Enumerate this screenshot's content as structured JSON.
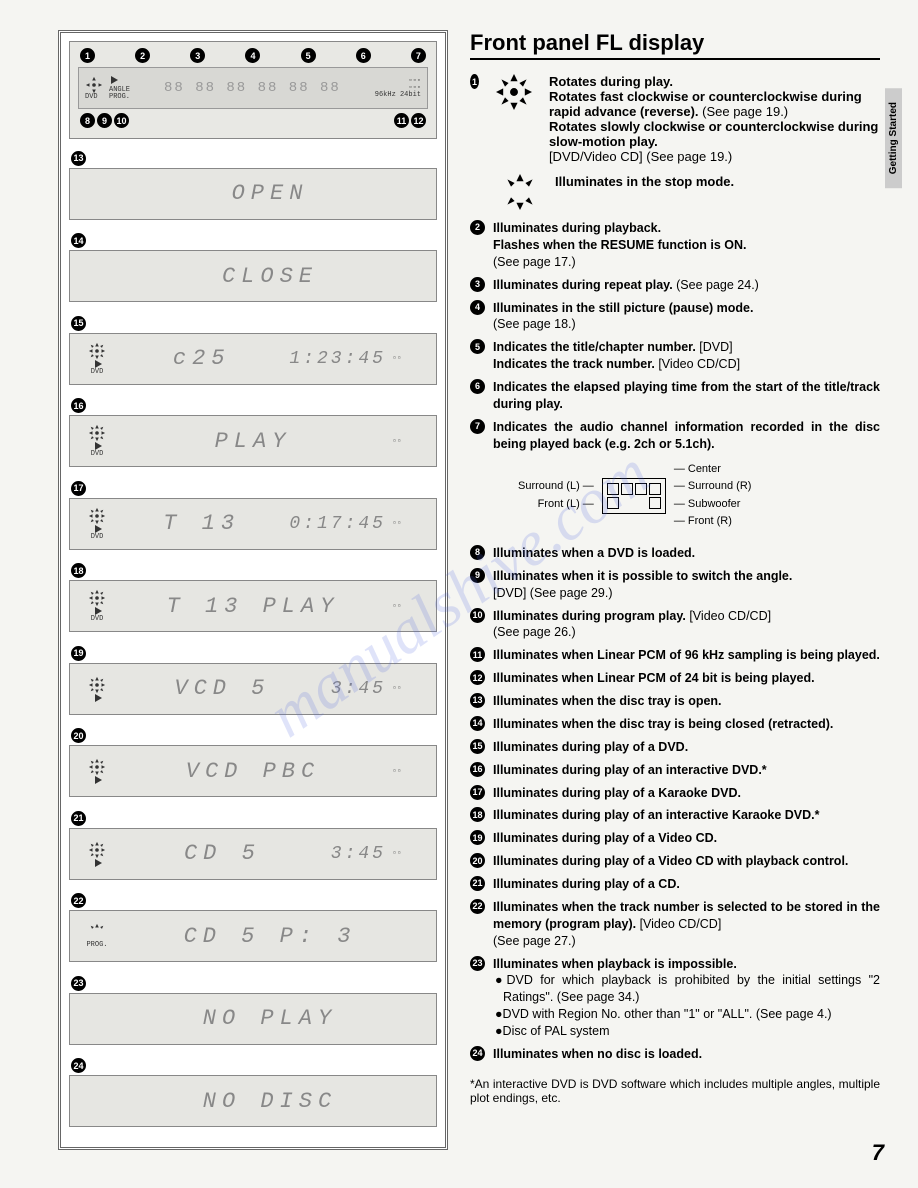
{
  "page": {
    "title": "Front panel FL display",
    "side_tab": "Getting Started",
    "page_number": "7",
    "watermark": "manualshive.com",
    "footnote": "*An interactive DVD is DVD software which includes multiple angles, multiple plot endings, etc."
  },
  "reference_panel": {
    "top_callouts": [
      "1",
      "2",
      "3",
      "4",
      "5",
      "6",
      "7"
    ],
    "bottom_callouts": [
      "8",
      "9",
      "10",
      "11",
      "12"
    ],
    "mini_labels": {
      "dvd": "DVD",
      "angle": "ANGLE",
      "prog": "PROG.",
      "khz": "96kHz 24bit"
    }
  },
  "displays": [
    {
      "n": "13",
      "icon": "",
      "text": "OPEN",
      "time": "",
      "ch": ""
    },
    {
      "n": "14",
      "icon": "",
      "text": "CLOSE",
      "time": "",
      "ch": ""
    },
    {
      "n": "15",
      "icon": "DVD",
      "text": "c25",
      "time": "1:23:45",
      "ch": "▫▫"
    },
    {
      "n": "16",
      "icon": "DVD",
      "text": "PLAY",
      "time": "",
      "ch": "▫▫"
    },
    {
      "n": "17",
      "icon": "DVD",
      "text": "T 13",
      "time": "0:17:45",
      "ch": "▫▫"
    },
    {
      "n": "18",
      "icon": "DVD",
      "text": "T 13  PLAY",
      "time": "",
      "ch": "▫▫"
    },
    {
      "n": "19",
      "icon": "spin",
      "text": "VCD  5",
      "time": "3:45",
      "ch": "▫▫"
    },
    {
      "n": "20",
      "icon": "spin",
      "text": "VCD  PBC",
      "time": "",
      "ch": "▫▫"
    },
    {
      "n": "21",
      "icon": "spin",
      "text": "CD   5",
      "time": "3:45",
      "ch": "▫▫"
    },
    {
      "n": "22",
      "icon": "PROG.",
      "text": "CD   5   P: 3",
      "time": "",
      "ch": ""
    },
    {
      "n": "23",
      "icon": "",
      "text": "NO PLAY",
      "time": "",
      "ch": ""
    },
    {
      "n": "24",
      "icon": "",
      "text": "NO DISC",
      "time": "",
      "ch": ""
    }
  ],
  "icon_desc_1": {
    "lines": [
      "<b>Rotates during play.</b>",
      "<b>Rotates fast clockwise or counterclockwise during rapid advance (reverse).</b> (See page 19.)",
      "<b>Rotates slowly clockwise or counterclockwise during slow-motion play.</b>",
      "[DVD/Video CD] (See page 19.)"
    ]
  },
  "icon_desc_2": "Illuminates in the stop mode.",
  "items": [
    {
      "n": "2",
      "html": "<b>Illuminates during playback.<br>Flashes when the RESUME function is ON.</b><br>(See page 17.)"
    },
    {
      "n": "3",
      "html": "<b>Illuminates during repeat play.</b> (See page 24.)"
    },
    {
      "n": "4",
      "html": "<b>Illuminates in the still picture (pause) mode.</b><br>(See page 18.)"
    },
    {
      "n": "5",
      "html": "<b>Indicates the title/chapter number.</b> [DVD]<br><b>Indicates the track number.</b> [Video CD/CD]"
    },
    {
      "n": "6",
      "html": "<b>Indicates the elapsed playing time from the start of the title/track during play.</b>"
    },
    {
      "n": "7",
      "html": "<b>Indicates the audio channel information recorded in the disc being played back (e.g. 2ch or 5.1ch).</b>"
    }
  ],
  "ch_diagram": {
    "left": [
      "Surround (L)",
      "Front (L)"
    ],
    "right": [
      "Center",
      "Surround (R)",
      "Subwoofer",
      "Front (R)"
    ]
  },
  "items2": [
    {
      "n": "8",
      "html": "<b>Illuminates when a DVD is loaded.</b>"
    },
    {
      "n": "9",
      "html": "<b>Illuminates when it is possible to switch the angle.</b><br>[DVD] (See page 29.)"
    },
    {
      "n": "10",
      "html": "<b>Illuminates during program play.</b> [Video CD/CD]<br>(See page 26.)"
    },
    {
      "n": "11",
      "html": "<b>Illuminates when Linear PCM of 96 kHz sampling is being played.</b>"
    },
    {
      "n": "12",
      "html": "<b>Illuminates when Linear PCM of 24 bit is being played.</b>"
    },
    {
      "n": "13",
      "html": "<b>Illuminates when the disc tray is open.</b>"
    },
    {
      "n": "14",
      "html": "<b>Illuminates when the disc tray is being closed (retracted).</b>"
    },
    {
      "n": "15",
      "html": "<b>Illuminates during play of a DVD.</b>"
    },
    {
      "n": "16",
      "html": "<b>Illuminates during play of an interactive DVD.*</b>"
    },
    {
      "n": "17",
      "html": "<b>Illuminates during play of a Karaoke DVD.</b>"
    },
    {
      "n": "18",
      "html": "<b>Illuminates during play of an interactive Karaoke DVD.*</b>"
    },
    {
      "n": "19",
      "html": "<b>Illuminates during play of a Video CD.</b>"
    },
    {
      "n": "20",
      "html": "<b>Illuminates during play of a Video CD with playback control.</b>"
    },
    {
      "n": "21",
      "html": "<b>Illuminates during play of a CD.</b>"
    },
    {
      "n": "22",
      "html": "<b>Illuminates when the track number is selected to be stored in the memory (program play).</b> [Video CD/CD]<br>(See page 27.)"
    },
    {
      "n": "23",
      "html": "<b>Illuminates when playback is impossible.</b><br><span class='sub'>●DVD for which playback is prohibited by the initial settings \"2 Ratings\". (See page 34.)</span><span class='sub'>●DVD with Region No. other than \"1\" or \"ALL\". (See page 4.)</span><span class='sub'>●Disc of PAL system</span>"
    },
    {
      "n": "24",
      "html": "<b>Illuminates when no disc is loaded.</b>"
    }
  ]
}
